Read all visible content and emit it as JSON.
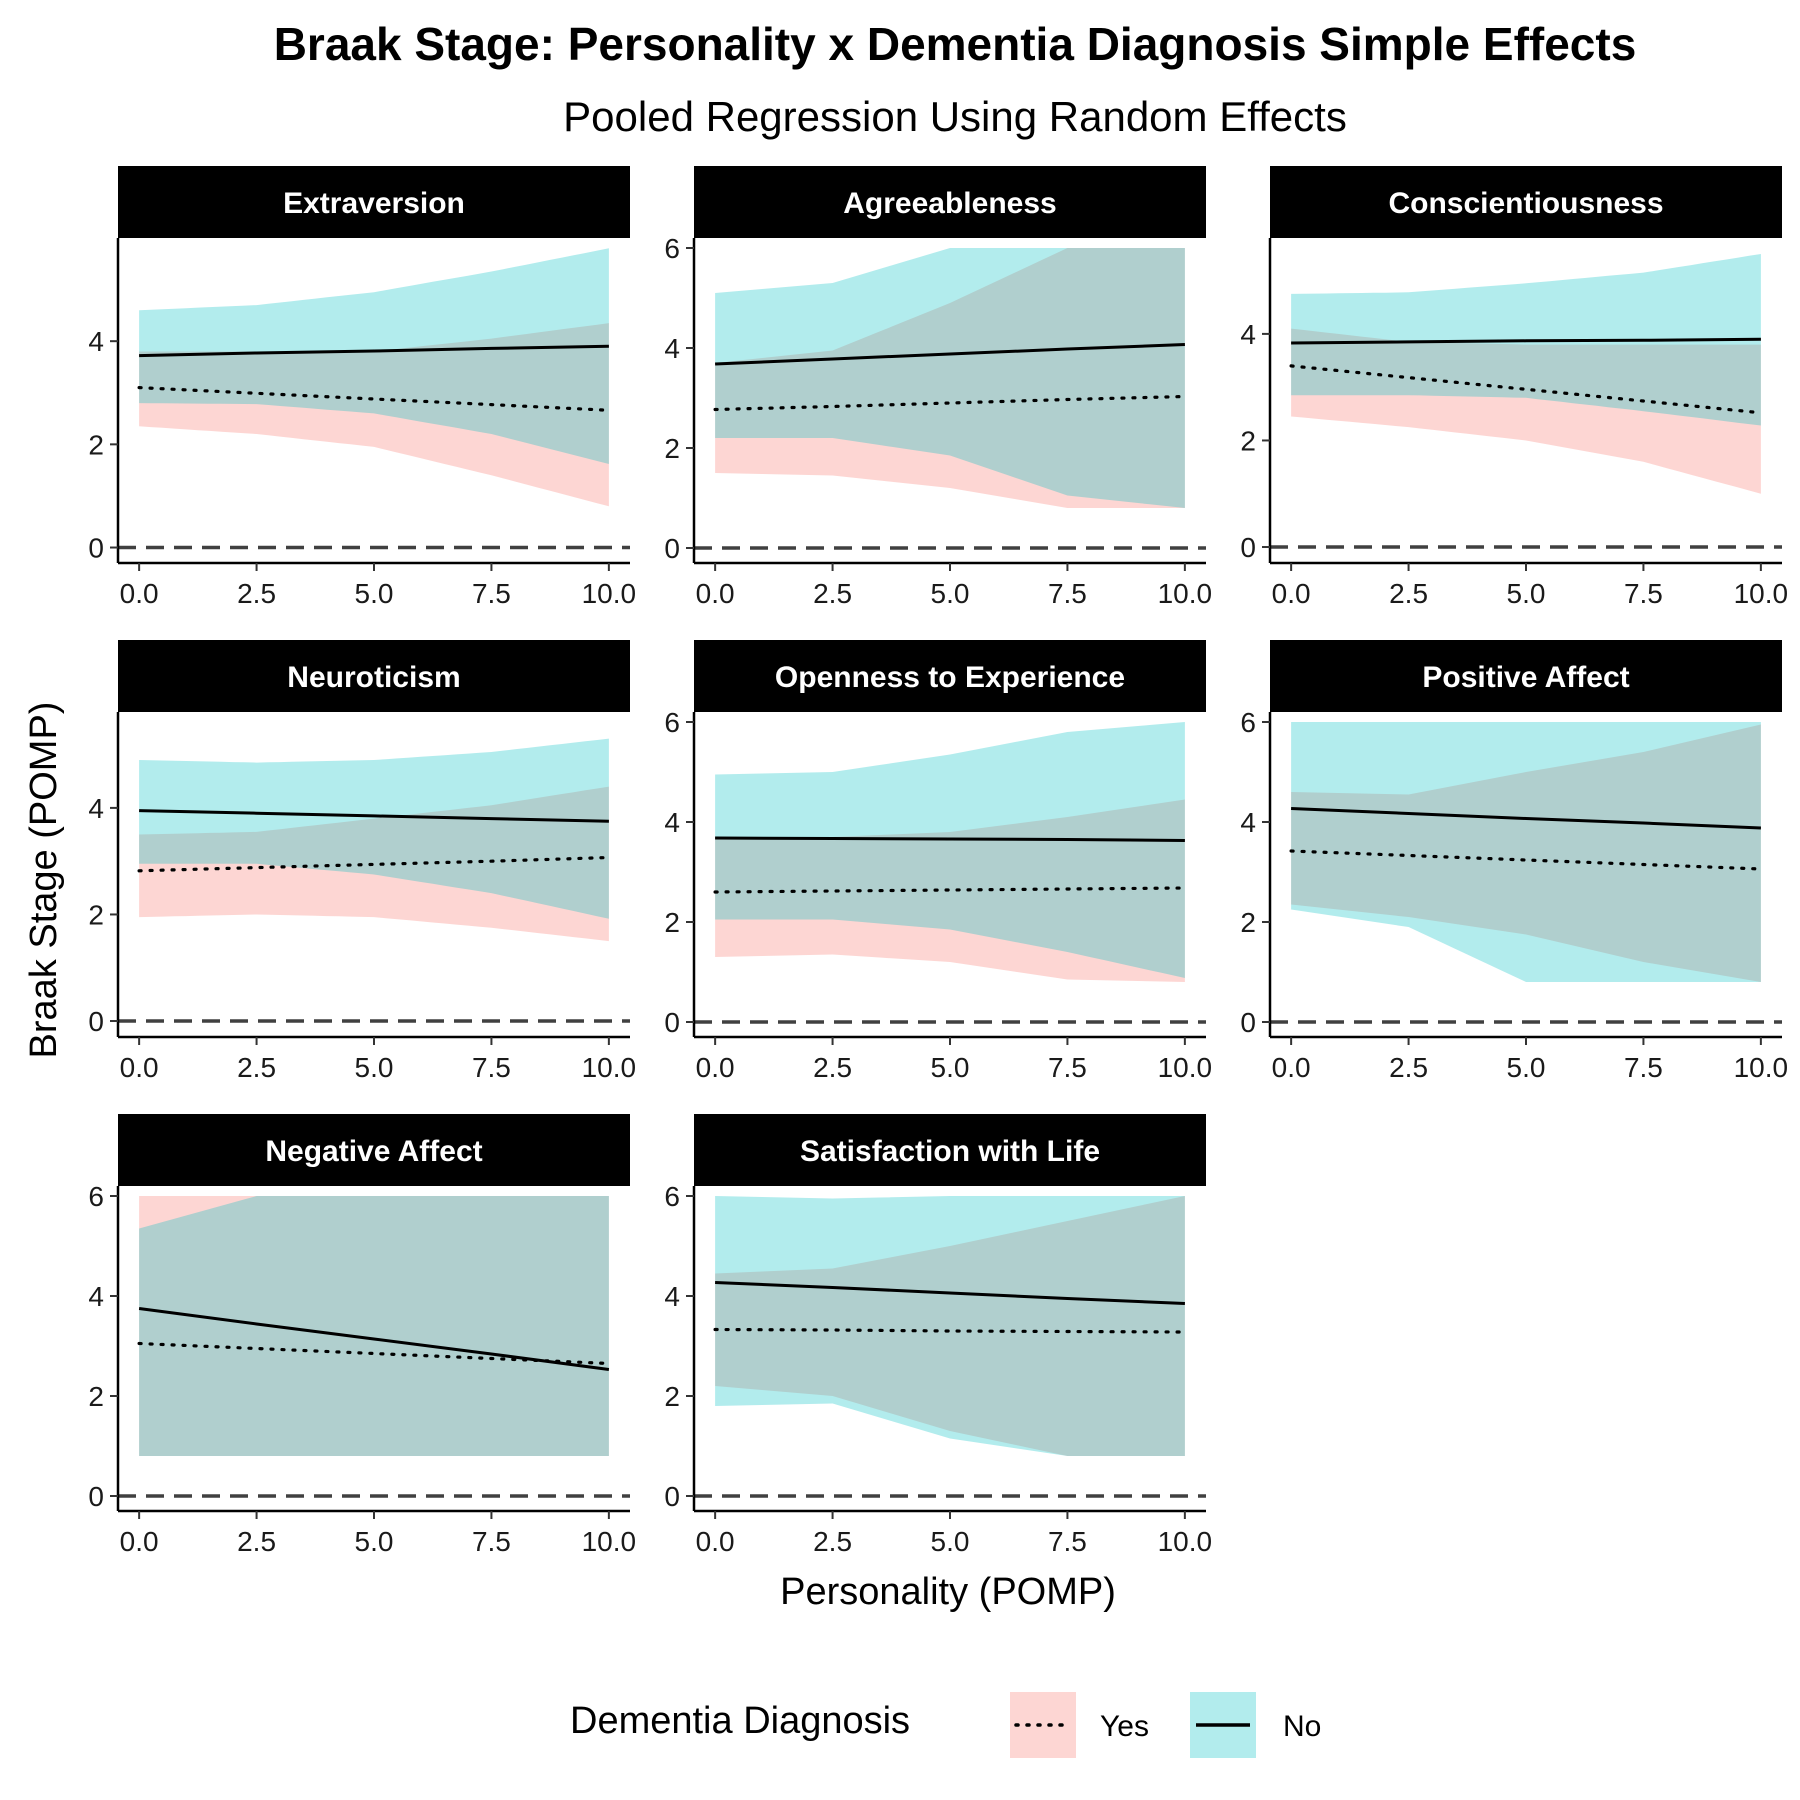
{
  "chart_data": {
    "type": "line",
    "title": "Braak Stage: Personality x Dementia Diagnosis Simple Effects",
    "subtitle": "Pooled Regression Using Random Effects",
    "xlabel": "Personality (POMP)",
    "ylabel": "Braak Stage (POMP)",
    "x_ticks": [
      0,
      2.5,
      5,
      7.5,
      10
    ],
    "x_tick_labels": [
      "0.0",
      "2.5",
      "5.0",
      "7.5",
      "10.0"
    ],
    "xlim": [
      -0.45,
      10.45
    ],
    "reference_line": {
      "y": 0,
      "style": "dashed"
    },
    "legend": {
      "title": "Dementia Diagnosis",
      "position": "bottom",
      "entries": [
        {
          "label": "Yes",
          "line_style": "dotted",
          "fill_color": "#F8766D"
        },
        {
          "label": "No",
          "line_style": "solid",
          "fill_color": "#00BFC4"
        }
      ]
    },
    "colors": {
      "yes_ribbon": "#F8766D",
      "no_ribbon": "#00BFC4",
      "strip_bg": "#000000",
      "strip_text": "#ffffff"
    },
    "panels": [
      {
        "name": "Extraversion",
        "ylim": [
          -0.3,
          6.0
        ],
        "y_ticks": [
          0,
          2,
          4
        ],
        "x": [
          0,
          2.5,
          5,
          7.5,
          10
        ],
        "series": [
          {
            "name": "Yes",
            "fit": [
              3.1,
              2.99,
              2.88,
              2.77,
              2.66
            ],
            "lower": [
              2.35,
              2.2,
              1.95,
              1.4,
              0.8
            ],
            "upper": [
              3.8,
              3.8,
              3.8,
              4.05,
              4.35
            ]
          },
          {
            "name": "No",
            "fit": [
              3.72,
              3.77,
              3.81,
              3.86,
              3.9
            ],
            "lower": [
              2.8,
              2.78,
              2.6,
              2.2,
              1.62
            ],
            "upper": [
              4.6,
              4.7,
              4.95,
              5.35,
              5.8
            ]
          }
        ]
      },
      {
        "name": "Agreeableness",
        "ylim": [
          -0.3,
          6.2
        ],
        "y_ticks": [
          0,
          2,
          4,
          6
        ],
        "x": [
          0,
          2.5,
          5,
          7.5,
          10
        ],
        "series": [
          {
            "name": "Yes",
            "fit": [
              2.77,
              2.83,
              2.9,
              2.97,
              3.03
            ],
            "lower": [
              1.5,
              1.45,
              1.2,
              0.8,
              0.8
            ],
            "upper": [
              3.7,
              3.95,
              4.9,
              6.0,
              6.0
            ]
          },
          {
            "name": "No",
            "fit": [
              3.68,
              3.78,
              3.88,
              3.98,
              4.07
            ],
            "lower": [
              2.2,
              2.2,
              1.85,
              1.05,
              0.8
            ],
            "upper": [
              5.1,
              5.3,
              6.0,
              6.0,
              6.0
            ]
          }
        ]
      },
      {
        "name": "Conscientiousness",
        "ylim": [
          -0.3,
          5.8
        ],
        "y_ticks": [
          0,
          2,
          4
        ],
        "x": [
          0,
          2.5,
          5,
          7.5,
          10
        ],
        "series": [
          {
            "name": "Yes",
            "fit": [
              3.4,
              3.18,
              2.96,
              2.74,
              2.52
            ],
            "lower": [
              2.45,
              2.25,
              2.0,
              1.6,
              1.0
            ],
            "upper": [
              4.1,
              3.85,
              3.8,
              3.8,
              3.8
            ]
          },
          {
            "name": "No",
            "fit": [
              3.83,
              3.85,
              3.87,
              3.88,
              3.9
            ],
            "lower": [
              2.85,
              2.85,
              2.8,
              2.55,
              2.28
            ],
            "upper": [
              4.75,
              4.78,
              4.95,
              5.15,
              5.5
            ]
          }
        ]
      },
      {
        "name": "Neuroticism",
        "ylim": [
          -0.3,
          5.8
        ],
        "y_ticks": [
          0,
          2,
          4
        ],
        "x": [
          0,
          2.5,
          5,
          7.5,
          10
        ],
        "series": [
          {
            "name": "Yes",
            "fit": [
              2.82,
              2.88,
              2.94,
              3.0,
              3.07
            ],
            "lower": [
              1.95,
              2.0,
              1.95,
              1.75,
              1.5
            ],
            "upper": [
              3.5,
              3.55,
              3.8,
              4.05,
              4.4
            ]
          },
          {
            "name": "No",
            "fit": [
              3.95,
              3.9,
              3.85,
              3.8,
              3.75
            ],
            "lower": [
              2.95,
              2.95,
              2.75,
              2.4,
              1.92
            ],
            "upper": [
              4.9,
              4.85,
              4.9,
              5.05,
              5.3
            ]
          }
        ]
      },
      {
        "name": "Openness to Experience",
        "ylim": [
          -0.3,
          6.2
        ],
        "y_ticks": [
          0,
          2,
          4,
          6
        ],
        "x": [
          0,
          2.5,
          5,
          7.5,
          10
        ],
        "series": [
          {
            "name": "Yes",
            "fit": [
              2.6,
              2.62,
              2.64,
              2.66,
              2.68
            ],
            "lower": [
              1.3,
              1.35,
              1.2,
              0.85,
              0.8
            ],
            "upper": [
              3.7,
              3.7,
              3.8,
              4.1,
              4.45
            ]
          },
          {
            "name": "No",
            "fit": [
              3.68,
              3.67,
              3.66,
              3.65,
              3.63
            ],
            "lower": [
              2.05,
              2.05,
              1.85,
              1.4,
              0.88
            ],
            "upper": [
              4.95,
              5.0,
              5.35,
              5.8,
              6.0
            ]
          }
        ]
      },
      {
        "name": "Positive Affect",
        "ylim": [
          -0.3,
          6.2
        ],
        "y_ticks": [
          0,
          2,
          4,
          6
        ],
        "x": [
          0,
          2.5,
          5,
          7.5,
          10
        ],
        "series": [
          {
            "name": "Yes",
            "fit": [
              3.42,
              3.33,
              3.24,
              3.15,
              3.06
            ],
            "lower": [
              2.35,
              2.1,
              1.75,
              1.2,
              0.8
            ],
            "upper": [
              4.6,
              4.55,
              5.0,
              5.4,
              5.95
            ]
          },
          {
            "name": "No",
            "fit": [
              4.27,
              4.17,
              4.07,
              3.98,
              3.88
            ],
            "lower": [
              2.25,
              1.9,
              0.8,
              0.8,
              0.8
            ],
            "upper": [
              6.0,
              6.0,
              6.0,
              6.0,
              6.0
            ]
          }
        ]
      },
      {
        "name": "Negative Affect",
        "ylim": [
          -0.3,
          6.2
        ],
        "y_ticks": [
          0,
          2,
          4,
          6
        ],
        "x": [
          0,
          2.5,
          5,
          7.5,
          10
        ],
        "series": [
          {
            "name": "Yes",
            "fit": [
              3.05,
              2.95,
              2.85,
              2.75,
              2.65
            ],
            "lower": [
              0.8,
              0.8,
              0.8,
              0.8,
              0.8
            ],
            "upper": [
              6.0,
              6.0,
              6.0,
              6.0,
              6.0
            ]
          },
          {
            "name": "No",
            "fit": [
              3.75,
              3.44,
              3.14,
              2.84,
              2.53
            ],
            "lower": [
              0.8,
              0.8,
              0.8,
              0.8,
              0.8
            ],
            "upper": [
              5.35,
              6.0,
              6.0,
              6.0,
              6.0
            ]
          }
        ]
      },
      {
        "name": "Satisfaction with Life",
        "ylim": [
          -0.3,
          6.2
        ],
        "y_ticks": [
          0,
          2,
          4,
          6
        ],
        "x": [
          0,
          2.5,
          5,
          7.5,
          10
        ],
        "series": [
          {
            "name": "Yes",
            "fit": [
              3.33,
              3.32,
              3.3,
              3.29,
              3.28
            ],
            "lower": [
              2.2,
              2.0,
              1.3,
              0.8,
              0.8
            ],
            "upper": [
              4.45,
              4.55,
              5.0,
              5.5,
              6.0
            ]
          },
          {
            "name": "No",
            "fit": [
              4.27,
              4.17,
              4.06,
              3.95,
              3.85
            ],
            "lower": [
              1.8,
              1.85,
              1.15,
              0.8,
              0.8
            ],
            "upper": [
              6.0,
              5.95,
              6.0,
              6.0,
              6.0
            ]
          }
        ]
      }
    ]
  }
}
